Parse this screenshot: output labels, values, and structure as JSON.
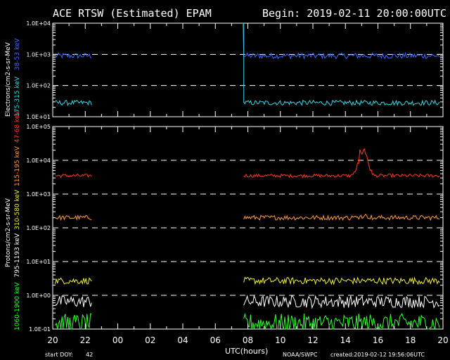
{
  "header": {
    "title": "ACE RTSW (Estimated) EPAM",
    "begin": "Begin: 2019-02-11 20:00:00UTC"
  },
  "footer": {
    "start_doy_label": "start DOY:",
    "start_doy": "42",
    "xlabel": "UTC(hours)",
    "credit": "NOAA/SWPC",
    "created": "created:2019-02-12 19:56:06UTC"
  },
  "x_ticks": [
    "20",
    "22",
    "00",
    "02",
    "04",
    "06",
    "08",
    "10",
    "12",
    "14",
    "16",
    "18",
    "20"
  ],
  "colors": {
    "background": "#000000",
    "axes": "#ffffff",
    "e38": "#3a6bff",
    "e175": "#39d6e6",
    "p47": "#ff3a1e",
    "p115": "#ff9a3a",
    "p310": "#f0f03a",
    "p795": "#ffffff",
    "p1060": "#33ff33"
  },
  "chart_data": [
    {
      "type": "line",
      "panel": "electrons",
      "ylabel": "Electrons/cm2-s-sr-MeV",
      "yscale": "log",
      "ylim": [
        10,
        10000
      ],
      "y_ticks": [
        "1.0E+04",
        "1.0E+03",
        "1.0E+02",
        "1.0E+01"
      ],
      "xlim_hours": [
        0,
        24
      ],
      "gap_hours": [
        2.4,
        11.7
      ],
      "grid": "dashed at each decade",
      "series": [
        {
          "name": "38-53 keV",
          "color_key": "e38",
          "level": 900,
          "jitter": 0.09,
          "spike_at_hours": 11.7
        },
        {
          "name": "175-315 keV",
          "color_key": "e175",
          "level": 28,
          "jitter": 0.08
        }
      ]
    },
    {
      "type": "line",
      "panel": "protons",
      "ylabel": "Protons/cm2-s-sr-MeV",
      "yscale": "log",
      "ylim": [
        0.1,
        100000
      ],
      "y_ticks": [
        "1.0E+05",
        "1.0E+04",
        "1.0E+03",
        "1.0E+02",
        "1.0E+01",
        "1.0E+00",
        "1.0E-01"
      ],
      "xlim_hours": [
        0,
        24
      ],
      "gap_hours": [
        2.4,
        11.7
      ],
      "grid": "dashed at each decade",
      "series": [
        {
          "name": "47-68 keV",
          "color_key": "p47",
          "level": 3500,
          "jitter": 0.05,
          "peak": {
            "center_hours": 19.1,
            "max": 25000
          }
        },
        {
          "name": "115-195 keV",
          "color_key": "p115",
          "level": 200,
          "jitter": 0.07,
          "peak": {
            "center_hours": 19.1,
            "max": 150
          }
        },
        {
          "name": "310-580 keV",
          "color_key": "p310",
          "level": 2.7,
          "jitter": 0.1
        },
        {
          "name": "795-1193 keV",
          "color_key": "p795",
          "level": 0.65,
          "jitter": 0.18
        },
        {
          "name": "1060-1900 keV",
          "color_key": "p1060",
          "level": 0.15,
          "jitter": 0.28
        }
      ]
    }
  ]
}
